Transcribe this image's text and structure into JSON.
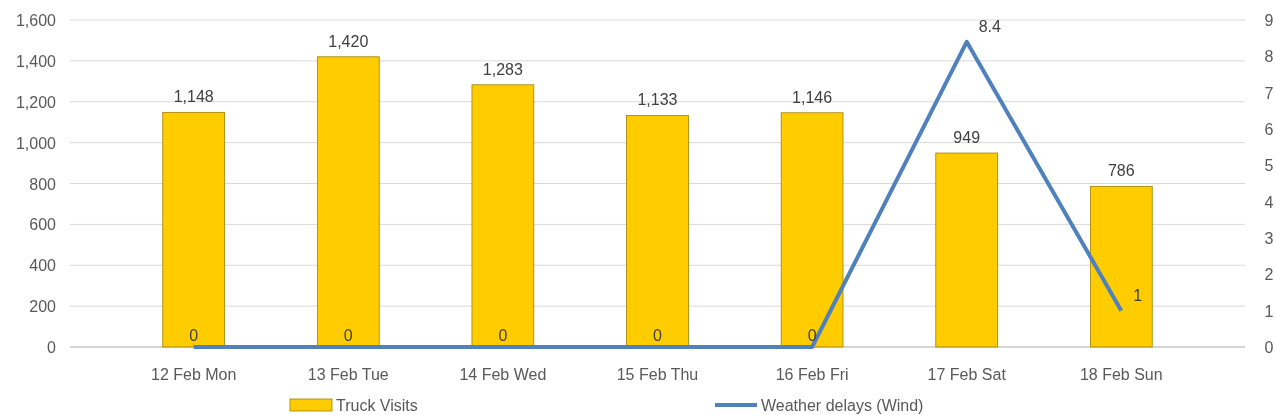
{
  "chart_data": {
    "type": "bar",
    "categories": [
      "12 Feb Mon",
      "13 Feb Tue",
      "14 Feb Wed",
      "15 Feb Thu",
      "16 Feb Fri",
      "17 Feb Sat",
      "18 Feb Sun"
    ],
    "series": [
      {
        "name": "Truck Visits",
        "color": "#ffcc00",
        "values": [
          1148,
          1420,
          1283,
          1133,
          1146,
          949,
          786
        ],
        "value_labels": [
          "1,148",
          "1,420",
          "1,283",
          "1,133",
          "1,146",
          "949",
          "786"
        ]
      },
      {
        "name": "Weather delays (Wind)",
        "type": "line",
        "axis": "y2",
        "color": "#4f81bd",
        "values": [
          0,
          0,
          0,
          0,
          0,
          8.4,
          1
        ]
      }
    ],
    "ylim": [
      0,
      1600
    ],
    "yticks": [
      {
        "value": 0,
        "label": "0"
      },
      {
        "value": 200,
        "label": "200"
      },
      {
        "value": 400,
        "label": "400"
      },
      {
        "value": 600,
        "label": "600"
      },
      {
        "value": 800,
        "label": "800"
      },
      {
        "value": 1000,
        "label": "1,000"
      },
      {
        "value": 1200,
        "label": "1,200"
      },
      {
        "value": 1400,
        "label": "1,400"
      },
      {
        "value": 1600,
        "label": "1,600"
      }
    ],
    "y2lim": [
      0,
      9
    ],
    "y2ticks": [
      0,
      1,
      2,
      3,
      4,
      5,
      6,
      7,
      8,
      9
    ],
    "grid": "y",
    "data_labels": true,
    "legend": "bottom",
    "marker": "none",
    "line_style": "solid"
  }
}
